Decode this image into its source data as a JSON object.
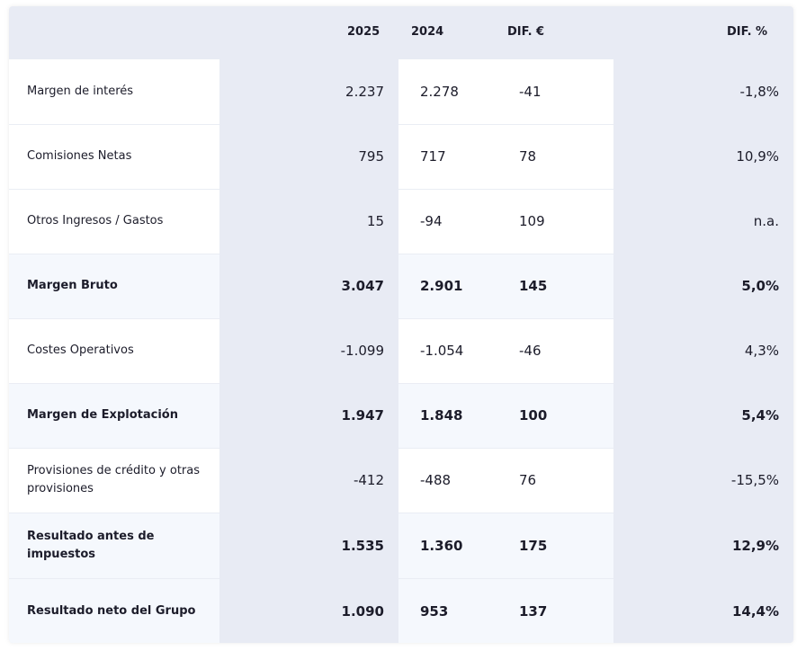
{
  "header": {
    "col_2025": "2025",
    "col_2024": "2024",
    "col_dif_eur": "DIF. €",
    "col_dif_pct": "DIF. %"
  },
  "rows": [
    {
      "label": "Margen de interés",
      "v2025": "2.237",
      "v2024": "2.278",
      "dif": "-41",
      "pct": "-1,8%",
      "bold": false
    },
    {
      "label": "Comisiones Netas",
      "v2025": "795",
      "v2024": "717",
      "dif": "78",
      "pct": "10,9%",
      "bold": false
    },
    {
      "label": "Otros Ingresos / Gastos",
      "v2025": "15",
      "v2024": "-94",
      "dif": "109",
      "pct": "n.a.",
      "bold": false
    },
    {
      "label": "Margen Bruto",
      "v2025": "3.047",
      "v2024": "2.901",
      "dif": "145",
      "pct": "5,0%",
      "bold": true
    },
    {
      "label": "Costes Operativos",
      "v2025": "-1.099",
      "v2024": "-1.054",
      "dif": "-46",
      "pct": "4,3%",
      "bold": false
    },
    {
      "label": "Margen de Explotación",
      "v2025": "1.947",
      "v2024": "1.848",
      "dif": "100",
      "pct": "5,4%",
      "bold": true
    },
    {
      "label": "Provisiones de crédito y otras provisiones",
      "v2025": "-412",
      "v2024": "-488",
      "dif": "76",
      "pct": "-15,5%",
      "bold": false
    },
    {
      "label": "Resultado antes de impuestos",
      "v2025": "1.535",
      "v2024": "1.360",
      "dif": "175",
      "pct": "12,9%",
      "bold": true
    },
    {
      "label": "Resultado neto del Grupo",
      "v2025": "1.090",
      "v2024": "953",
      "dif": "137",
      "pct": "14,4%",
      "bold": true
    }
  ],
  "colors": {
    "band": "#e8ebf4",
    "white_cell": "#ffffff",
    "bold_cell": "#f5f8fd",
    "text": "#1c1c2a"
  }
}
